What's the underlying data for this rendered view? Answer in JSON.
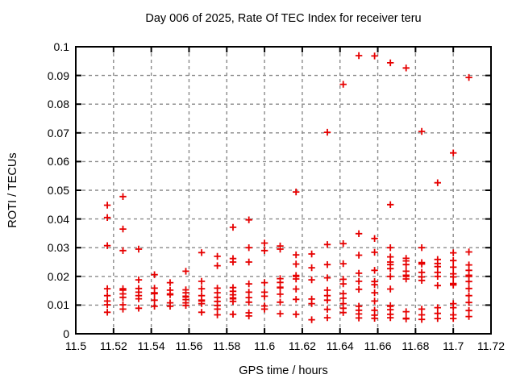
{
  "title": "Day 006 of 2025, Rate Of TEC Index for receiver teru",
  "chart_data": {
    "type": "scatter",
    "title": "Day 006 of 2025, Rate Of TEC Index for receiver teru",
    "xlabel": "GPS time / hours",
    "ylabel": "ROTI / TECUs",
    "xlim": [
      11.5,
      11.72
    ],
    "ylim": [
      0,
      0.1
    ],
    "xticks": [
      11.5,
      11.52,
      11.54,
      11.56,
      11.58,
      11.6,
      11.62,
      11.64,
      11.66,
      11.68,
      11.7,
      11.72
    ],
    "xtick_labels": [
      "11.5",
      "11.52",
      "11.54",
      "11.56",
      "11.58",
      "11.6",
      "11.62",
      "11.64",
      "11.66",
      "11.68",
      "11.7",
      "11.72"
    ],
    "yticks": [
      0,
      0.01,
      0.02,
      0.03,
      0.04,
      0.05,
      0.06,
      0.07,
      0.08,
      0.09,
      0.1
    ],
    "ytick_labels": [
      "0",
      "0.01",
      "0.02",
      "0.03",
      "0.04",
      "0.05",
      "0.06",
      "0.07",
      "0.08",
      "0.09",
      "0.1"
    ],
    "grid": true,
    "legend": "none",
    "marker": "plus",
    "marker_color": "#e60000",
    "grid_color": "#8a8a8a",
    "frame_color": "#000000",
    "series": [
      {
        "name": "ROTI",
        "points": [
          [
            11.5167,
            0.0448
          ],
          [
            11.5167,
            0.0405
          ],
          [
            11.5167,
            0.0307
          ],
          [
            11.5167,
            0.0157
          ],
          [
            11.5167,
            0.0133
          ],
          [
            11.5167,
            0.0114
          ],
          [
            11.5167,
            0.0101
          ],
          [
            11.5167,
            0.0075
          ],
          [
            11.525,
            0.0478
          ],
          [
            11.525,
            0.0365
          ],
          [
            11.525,
            0.029
          ],
          [
            11.525,
            0.0157
          ],
          [
            11.525,
            0.0152
          ],
          [
            11.525,
            0.0139
          ],
          [
            11.525,
            0.0127
          ],
          [
            11.525,
            0.0101
          ],
          [
            11.525,
            0.0086
          ],
          [
            11.5333,
            0.0295
          ],
          [
            11.5333,
            0.0188
          ],
          [
            11.5333,
            0.0158
          ],
          [
            11.5333,
            0.0145
          ],
          [
            11.5333,
            0.0133
          ],
          [
            11.5333,
            0.0122
          ],
          [
            11.5333,
            0.0089
          ],
          [
            11.5417,
            0.0206
          ],
          [
            11.5417,
            0.0159
          ],
          [
            11.5417,
            0.0143
          ],
          [
            11.5417,
            0.014
          ],
          [
            11.5417,
            0.0117
          ],
          [
            11.5417,
            0.0096
          ],
          [
            11.55,
            0.0178
          ],
          [
            11.55,
            0.0152
          ],
          [
            11.55,
            0.0139
          ],
          [
            11.55,
            0.0136
          ],
          [
            11.55,
            0.0108
          ],
          [
            11.55,
            0.0096
          ],
          [
            11.5583,
            0.0218
          ],
          [
            11.5583,
            0.0153
          ],
          [
            11.5583,
            0.0143
          ],
          [
            11.5583,
            0.0131
          ],
          [
            11.5583,
            0.0128
          ],
          [
            11.5583,
            0.0119
          ],
          [
            11.5583,
            0.0108
          ],
          [
            11.5583,
            0.0099
          ],
          [
            11.5667,
            0.0283
          ],
          [
            11.5667,
            0.0183
          ],
          [
            11.5667,
            0.0157
          ],
          [
            11.5667,
            0.0133
          ],
          [
            11.5667,
            0.0117
          ],
          [
            11.5667,
            0.0114
          ],
          [
            11.5667,
            0.0105
          ],
          [
            11.5667,
            0.0075
          ],
          [
            11.575,
            0.027
          ],
          [
            11.575,
            0.0237
          ],
          [
            11.575,
            0.0159
          ],
          [
            11.575,
            0.0143
          ],
          [
            11.575,
            0.0127
          ],
          [
            11.575,
            0.0113
          ],
          [
            11.575,
            0.0099
          ],
          [
            11.575,
            0.0086
          ],
          [
            11.575,
            0.0066
          ],
          [
            11.5833,
            0.0371
          ],
          [
            11.5833,
            0.0262
          ],
          [
            11.5833,
            0.025
          ],
          [
            11.5833,
            0.0161
          ],
          [
            11.5833,
            0.0148
          ],
          [
            11.5833,
            0.0136
          ],
          [
            11.5833,
            0.0125
          ],
          [
            11.5833,
            0.0122
          ],
          [
            11.5833,
            0.0113
          ],
          [
            11.5833,
            0.0068
          ],
          [
            11.5917,
            0.0397
          ],
          [
            11.5917,
            0.03
          ],
          [
            11.5917,
            0.025
          ],
          [
            11.5917,
            0.0174
          ],
          [
            11.5917,
            0.0145
          ],
          [
            11.5917,
            0.0126
          ],
          [
            11.5917,
            0.011
          ],
          [
            11.5917,
            0.0073
          ],
          [
            11.5917,
            0.0062
          ],
          [
            11.6,
            0.0316
          ],
          [
            11.6,
            0.029
          ],
          [
            11.6,
            0.0178
          ],
          [
            11.6,
            0.0145
          ],
          [
            11.6,
            0.0131
          ],
          [
            11.6,
            0.0097
          ],
          [
            11.6,
            0.0086
          ],
          [
            11.6083,
            0.0306
          ],
          [
            11.6083,
            0.0295
          ],
          [
            11.6083,
            0.0192
          ],
          [
            11.6083,
            0.0179
          ],
          [
            11.6083,
            0.0162
          ],
          [
            11.6083,
            0.016
          ],
          [
            11.6083,
            0.0138
          ],
          [
            11.6083,
            0.011
          ],
          [
            11.6083,
            0.007
          ],
          [
            11.6167,
            0.0494
          ],
          [
            11.6167,
            0.0275
          ],
          [
            11.6167,
            0.0243
          ],
          [
            11.6167,
            0.0203
          ],
          [
            11.6167,
            0.02
          ],
          [
            11.6167,
            0.0191
          ],
          [
            11.6167,
            0.0156
          ],
          [
            11.6167,
            0.012
          ],
          [
            11.6167,
            0.0068
          ],
          [
            11.625,
            0.0278
          ],
          [
            11.625,
            0.023
          ],
          [
            11.625,
            0.0188
          ],
          [
            11.625,
            0.0121
          ],
          [
            11.625,
            0.0105
          ],
          [
            11.625,
            0.0049
          ],
          [
            11.6333,
            0.0702
          ],
          [
            11.6333,
            0.0311
          ],
          [
            11.6333,
            0.0241
          ],
          [
            11.6333,
            0.0195
          ],
          [
            11.6333,
            0.0152
          ],
          [
            11.6333,
            0.0133
          ],
          [
            11.6333,
            0.0117
          ],
          [
            11.6333,
            0.0085
          ],
          [
            11.6333,
            0.0056
          ],
          [
            11.6417,
            0.0869
          ],
          [
            11.6417,
            0.0314
          ],
          [
            11.6417,
            0.0244
          ],
          [
            11.6417,
            0.019
          ],
          [
            11.6417,
            0.0174
          ],
          [
            11.6417,
            0.014
          ],
          [
            11.6417,
            0.0124
          ],
          [
            11.6417,
            0.0105
          ],
          [
            11.6417,
            0.0089
          ],
          [
            11.6417,
            0.0074
          ],
          [
            11.65,
            0.0969
          ],
          [
            11.65,
            0.0349
          ],
          [
            11.65,
            0.0274
          ],
          [
            11.65,
            0.0211
          ],
          [
            11.65,
            0.0183
          ],
          [
            11.65,
            0.0155
          ],
          [
            11.65,
            0.0096
          ],
          [
            11.65,
            0.0082
          ],
          [
            11.65,
            0.0069
          ],
          [
            11.65,
            0.0055
          ],
          [
            11.6583,
            0.0968
          ],
          [
            11.6583,
            0.0332
          ],
          [
            11.6583,
            0.0284
          ],
          [
            11.6583,
            0.0221
          ],
          [
            11.6583,
            0.0182
          ],
          [
            11.6583,
            0.0171
          ],
          [
            11.6583,
            0.0143
          ],
          [
            11.6583,
            0.0114
          ],
          [
            11.6583,
            0.0082
          ],
          [
            11.6583,
            0.0065
          ],
          [
            11.6583,
            0.0054
          ],
          [
            11.6667,
            0.0944
          ],
          [
            11.6667,
            0.045
          ],
          [
            11.6667,
            0.03
          ],
          [
            11.6667,
            0.0268
          ],
          [
            11.6667,
            0.025
          ],
          [
            11.6667,
            0.0241
          ],
          [
            11.6667,
            0.0227
          ],
          [
            11.6667,
            0.02
          ],
          [
            11.6667,
            0.0156
          ],
          [
            11.6667,
            0.0098
          ],
          [
            11.6667,
            0.0096
          ],
          [
            11.6667,
            0.0084
          ],
          [
            11.6667,
            0.0068
          ],
          [
            11.6667,
            0.0056
          ],
          [
            11.675,
            0.0926
          ],
          [
            11.675,
            0.0263
          ],
          [
            11.675,
            0.0254
          ],
          [
            11.675,
            0.0241
          ],
          [
            11.675,
            0.0218
          ],
          [
            11.675,
            0.0204
          ],
          [
            11.675,
            0.02
          ],
          [
            11.675,
            0.0191
          ],
          [
            11.675,
            0.0077
          ],
          [
            11.675,
            0.0054
          ],
          [
            11.675,
            0.0052
          ],
          [
            11.6833,
            0.0705
          ],
          [
            11.6833,
            0.03
          ],
          [
            11.6833,
            0.0248
          ],
          [
            11.6833,
            0.0243
          ],
          [
            11.6833,
            0.0214
          ],
          [
            11.6833,
            0.0198
          ],
          [
            11.6833,
            0.0186
          ],
          [
            11.6833,
            0.0086
          ],
          [
            11.6833,
            0.0066
          ],
          [
            11.6833,
            0.005
          ],
          [
            11.6917,
            0.0526
          ],
          [
            11.6917,
            0.0259
          ],
          [
            11.6917,
            0.0245
          ],
          [
            11.6917,
            0.0234
          ],
          [
            11.6917,
            0.0214
          ],
          [
            11.6917,
            0.02
          ],
          [
            11.6917,
            0.0168
          ],
          [
            11.6917,
            0.0091
          ],
          [
            11.6917,
            0.0071
          ],
          [
            11.6917,
            0.0053
          ],
          [
            11.7,
            0.063
          ],
          [
            11.7,
            0.0282
          ],
          [
            11.7,
            0.0255
          ],
          [
            11.7,
            0.0232
          ],
          [
            11.7,
            0.0209
          ],
          [
            11.7,
            0.0198
          ],
          [
            11.7,
            0.0175
          ],
          [
            11.7,
            0.017
          ],
          [
            11.7,
            0.0105
          ],
          [
            11.7,
            0.0091
          ],
          [
            11.7,
            0.0066
          ],
          [
            11.7,
            0.0053
          ],
          [
            11.7083,
            0.0893
          ],
          [
            11.7083,
            0.0285
          ],
          [
            11.7083,
            0.024
          ],
          [
            11.7083,
            0.0221
          ],
          [
            11.7083,
            0.0204
          ],
          [
            11.7083,
            0.02
          ],
          [
            11.7083,
            0.0182
          ],
          [
            11.7083,
            0.0158
          ],
          [
            11.7083,
            0.0133
          ],
          [
            11.7083,
            0.0109
          ],
          [
            11.7083,
            0.0081
          ],
          [
            11.7083,
            0.006
          ]
        ]
      }
    ]
  }
}
